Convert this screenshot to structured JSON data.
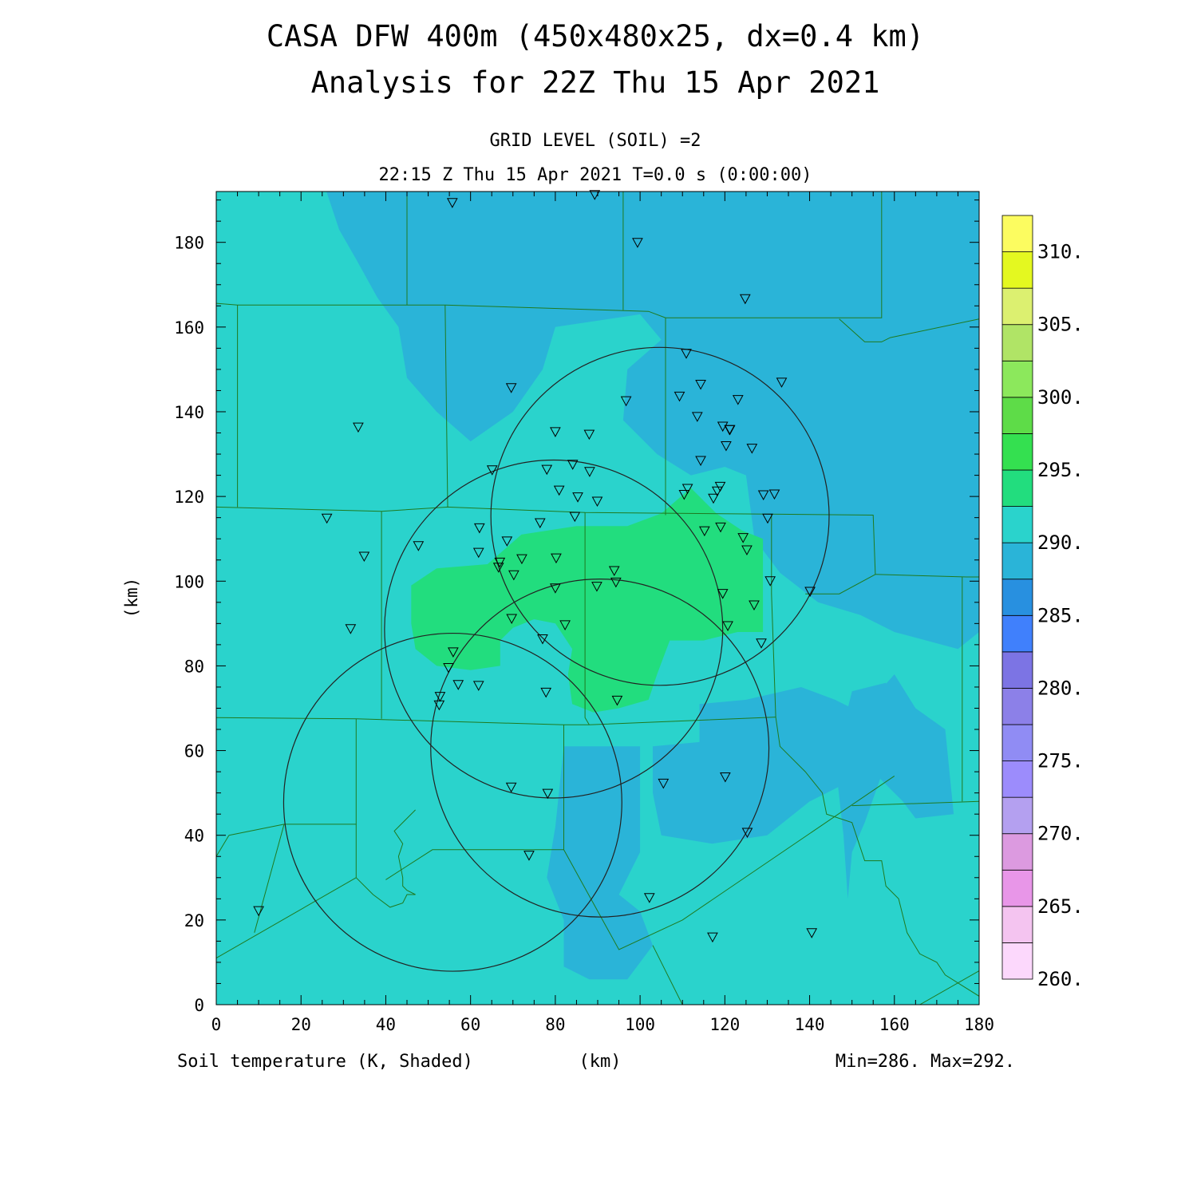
{
  "header": {
    "title_line1": "CASA DFW 400m (450x480x25, dx=0.4 km)",
    "title_line2": "Analysis for 22Z Thu 15 Apr 2021",
    "level_label": "GRID LEVEL (SOIL) =2",
    "time_label": "22:15 Z Thu 15 Apr 2021   T=0.0 s (0:00:00)"
  },
  "footer": {
    "field_label": "Soil temperature (K, Shaded)",
    "xunit": "(km)",
    "minmax": "Min=286. Max=292."
  },
  "chart_data": {
    "type": "heatmap",
    "title": "CASA DFW 400m (450x480x25, dx=0.4 km)",
    "subtitle": "Analysis for 22Z Thu 15 Apr 2021",
    "xlabel": "(km)",
    "ylabel": "(km)",
    "xlim": [
      0,
      180
    ],
    "ylim": [
      0,
      192
    ],
    "x_ticks": [
      "0",
      "20",
      "40",
      "60",
      "80",
      "100",
      "120",
      "140",
      "160",
      "180"
    ],
    "y_ticks": [
      "0",
      "20",
      "40",
      "60",
      "80",
      "100",
      "120",
      "140",
      "160",
      "180"
    ],
    "field": "Soil temperature (K)",
    "min": 286,
    "max": 292,
    "colorbar": {
      "labels": [
        "260.",
        "265.",
        "270.",
        "275.",
        "280.",
        "285.",
        "290.",
        "295.",
        "300.",
        "305.",
        "310."
      ],
      "bins": [
        {
          "from": 260.0,
          "to": 262.5,
          "color": "#fcd8fc"
        },
        {
          "from": 262.5,
          "to": 265.0,
          "color": "#f4c4f0"
        },
        {
          "from": 265.0,
          "to": 267.5,
          "color": "#e896e8"
        },
        {
          "from": 267.5,
          "to": 270.0,
          "color": "#dc9ae0"
        },
        {
          "from": 270.0,
          "to": 272.5,
          "color": "#b4a0f0"
        },
        {
          "from": 272.5,
          "to": 275.0,
          "color": "#9c8cfc"
        },
        {
          "from": 275.0,
          "to": 277.5,
          "color": "#908cf4"
        },
        {
          "from": 277.5,
          "to": 280.0,
          "color": "#8c80e8"
        },
        {
          "from": 280.0,
          "to": 282.5,
          "color": "#7c74e4"
        },
        {
          "from": 282.5,
          "to": 285.0,
          "color": "#4080fc"
        },
        {
          "from": 285.0,
          "to": 287.5,
          "color": "#2890e0"
        },
        {
          "from": 287.5,
          "to": 290.0,
          "color": "#2ab4d8"
        },
        {
          "from": 290.0,
          "to": 292.5,
          "color": "#2ad3cc"
        },
        {
          "from": 292.5,
          "to": 295.0,
          "color": "#22dd7e"
        },
        {
          "from": 295.0,
          "to": 297.5,
          "color": "#34e050"
        },
        {
          "from": 297.5,
          "to": 300.0,
          "color": "#5edc48"
        },
        {
          "from": 300.0,
          "to": 302.5,
          "color": "#8ce85c"
        },
        {
          "from": 302.5,
          "to": 305.0,
          "color": "#b0e466"
        },
        {
          "from": 305.0,
          "to": 307.5,
          "color": "#dcf070"
        },
        {
          "from": 307.5,
          "to": 310.0,
          "color": "#e4f820"
        },
        {
          "from": 310.0,
          "to": 312.5,
          "color": "#fcfc60"
        }
      ]
    },
    "regions": [
      {
        "level": "cool",
        "color": "#2ab4d8",
        "points": [
          [
            26,
            192
          ],
          [
            29,
            183
          ],
          [
            33,
            176
          ],
          [
            38,
            167
          ],
          [
            43,
            160
          ],
          [
            45,
            148
          ],
          [
            52,
            140
          ],
          [
            60,
            133
          ],
          [
            70,
            140
          ],
          [
            77,
            150
          ],
          [
            80,
            160
          ],
          [
            100,
            163
          ],
          [
            105,
            157
          ],
          [
            97,
            150
          ],
          [
            96,
            138
          ],
          [
            104,
            130
          ],
          [
            112,
            125
          ],
          [
            120,
            127
          ],
          [
            125,
            125
          ],
          [
            127,
            110
          ],
          [
            133,
            102
          ],
          [
            142,
            95
          ],
          [
            152,
            92
          ],
          [
            160,
            88
          ],
          [
            175,
            84
          ],
          [
            180,
            88
          ],
          [
            180,
            192
          ]
        ]
      },
      {
        "level": "cool",
        "color": "#2ab4d8",
        "points": [
          [
            82,
            61
          ],
          [
            100,
            61
          ],
          [
            100,
            36
          ],
          [
            95,
            26
          ],
          [
            100,
            22
          ],
          [
            103,
            14
          ],
          [
            97,
            6
          ],
          [
            88,
            6
          ],
          [
            82,
            9
          ],
          [
            82,
            20
          ],
          [
            78,
            30
          ],
          [
            80,
            42
          ]
        ]
      },
      {
        "level": "cool",
        "color": "#2ab4d8",
        "points": [
          [
            103,
            61
          ],
          [
            114,
            62
          ],
          [
            114,
            71
          ],
          [
            125,
            72
          ],
          [
            138,
            75
          ],
          [
            146,
            72
          ],
          [
            152,
            69
          ],
          [
            160,
            78
          ],
          [
            165,
            70
          ],
          [
            172,
            65
          ],
          [
            174,
            45
          ],
          [
            165,
            44
          ],
          [
            162,
            48
          ],
          [
            155,
            55
          ],
          [
            148,
            52
          ],
          [
            140,
            48
          ],
          [
            130,
            40
          ],
          [
            117,
            38
          ],
          [
            105,
            40
          ],
          [
            103,
            50
          ]
        ]
      },
      {
        "level": "cool",
        "color": "#2ab4d8",
        "points": [
          [
            150,
            74
          ],
          [
            158,
            76
          ],
          [
            159,
            60
          ],
          [
            153,
            43
          ],
          [
            150,
            36
          ],
          [
            149,
            25
          ],
          [
            148,
            40
          ],
          [
            146,
            58
          ]
        ]
      },
      {
        "level": "warm",
        "color": "#22dd7e",
        "points": [
          [
            46,
            99
          ],
          [
            52,
            103
          ],
          [
            64,
            104
          ],
          [
            72,
            111
          ],
          [
            85,
            113
          ],
          [
            97,
            113
          ],
          [
            105,
            116
          ],
          [
            112,
            122
          ],
          [
            118,
            116
          ],
          [
            124,
            112
          ],
          [
            129,
            110
          ],
          [
            129,
            88
          ],
          [
            123,
            88
          ],
          [
            115,
            86
          ],
          [
            107,
            86
          ],
          [
            104,
            78
          ],
          [
            102,
            72
          ],
          [
            95,
            70
          ],
          [
            89,
            69
          ],
          [
            84,
            71
          ],
          [
            83,
            78
          ],
          [
            84,
            84
          ],
          [
            80,
            90
          ],
          [
            75,
            91
          ],
          [
            70,
            89
          ],
          [
            67,
            86
          ],
          [
            67,
            80
          ],
          [
            60,
            79
          ],
          [
            52,
            80
          ],
          [
            47,
            84
          ],
          [
            46,
            90
          ]
        ]
      }
    ],
    "sites": [
      [
        55.7,
        189.4
      ],
      [
        89.3,
        191.3
      ],
      [
        99.4,
        180.0
      ],
      [
        124.8,
        166.7
      ],
      [
        110.9,
        153.8
      ],
      [
        109.3,
        143.7
      ],
      [
        114.3,
        146.5
      ],
      [
        133.4,
        147.0
      ],
      [
        96.7,
        142.6
      ],
      [
        69.6,
        145.7
      ],
      [
        123.1,
        142.9
      ],
      [
        113.5,
        138.9
      ],
      [
        119.5,
        136.6
      ],
      [
        121.1,
        135.8
      ],
      [
        121.2,
        135.8
      ],
      [
        120.3,
        132.0
      ],
      [
        126.4,
        131.4
      ],
      [
        33.5,
        136.4
      ],
      [
        80.0,
        135.3
      ],
      [
        88.0,
        134.7
      ],
      [
        114.3,
        128.5
      ],
      [
        65.1,
        126.3
      ],
      [
        78.0,
        126.4
      ],
      [
        84.1,
        127.6
      ],
      [
        88.1,
        125.9
      ],
      [
        80.9,
        121.5
      ],
      [
        111.2,
        121.9
      ],
      [
        110.4,
        120.5
      ],
      [
        118.9,
        122.4
      ],
      [
        118.2,
        121.3
      ],
      [
        117.3,
        119.6
      ],
      [
        85.3,
        119.9
      ],
      [
        89.9,
        118.9
      ],
      [
        129.1,
        120.4
      ],
      [
        131.7,
        120.6
      ],
      [
        130.1,
        114.9
      ],
      [
        84.6,
        115.3
      ],
      [
        26.1,
        114.9
      ],
      [
        62.1,
        112.6
      ],
      [
        76.4,
        113.8
      ],
      [
        115.2,
        111.9
      ],
      [
        119.0,
        112.8
      ],
      [
        124.3,
        110.3
      ],
      [
        125.2,
        107.4
      ],
      [
        68.6,
        109.5
      ],
      [
        47.7,
        108.4
      ],
      [
        34.9,
        105.9
      ],
      [
        61.9,
        106.8
      ],
      [
        66.9,
        104.5
      ],
      [
        66.6,
        103.3
      ],
      [
        72.1,
        105.3
      ],
      [
        80.2,
        105.5
      ],
      [
        70.2,
        101.5
      ],
      [
        93.9,
        102.5
      ],
      [
        94.3,
        99.8
      ],
      [
        89.8,
        98.8
      ],
      [
        80.0,
        98.4
      ],
      [
        130.7,
        100.1
      ],
      [
        119.5,
        97.1
      ],
      [
        126.9,
        94.4
      ],
      [
        140.1,
        97.6
      ],
      [
        69.7,
        91.2
      ],
      [
        82.3,
        89.7
      ],
      [
        120.7,
        89.5
      ],
      [
        31.7,
        88.8
      ],
      [
        77.0,
        86.4
      ],
      [
        128.6,
        85.4
      ],
      [
        55.9,
        83.3
      ],
      [
        54.8,
        79.6
      ],
      [
        57.1,
        75.6
      ],
      [
        61.9,
        75.4
      ],
      [
        77.8,
        73.8
      ],
      [
        52.8,
        72.8
      ],
      [
        52.6,
        70.8
      ],
      [
        94.6,
        71.9
      ],
      [
        69.6,
        51.4
      ],
      [
        78.2,
        49.9
      ],
      [
        120.1,
        53.8
      ],
      [
        105.5,
        52.3
      ],
      [
        125.3,
        40.7
      ],
      [
        73.8,
        35.3
      ],
      [
        102.2,
        25.3
      ],
      [
        10.0,
        22.2
      ],
      [
        117.1,
        16.0
      ],
      [
        140.5,
        17.0
      ]
    ],
    "radar_rings": [
      {
        "center": [
          104.7,
          115.3
        ],
        "radius": 39.9
      },
      {
        "center": [
          79.6,
          88.7
        ],
        "radius": 39.9
      },
      {
        "center": [
          90.5,
          60.6
        ],
        "radius": 39.9
      },
      {
        "center": [
          55.8,
          47.8
        ],
        "radius": 39.9
      }
    ],
    "county_lines": [
      [
        [
          26.5,
          192
        ],
        [
          26.5,
          192
        ]
      ],
      [
        [
          0,
          165.6
        ],
        [
          5,
          165.2
        ],
        [
          54,
          165.2
        ],
        [
          102,
          163.7
        ],
        [
          106,
          162.2
        ],
        [
          147,
          162.2
        ],
        [
          157,
          162.2
        ],
        [
          157,
          192
        ]
      ],
      [
        [
          45,
          192
        ],
        [
          45,
          165.2
        ]
      ],
      [
        [
          96,
          192
        ],
        [
          96,
          164
        ]
      ],
      [
        [
          147,
          161.9
        ],
        [
          153,
          156.5
        ],
        [
          157,
          156.5
        ],
        [
          159,
          157.5
        ],
        [
          180,
          161.9
        ]
      ],
      [
        [
          5,
          165.2
        ],
        [
          5,
          117.5
        ]
      ],
      [
        [
          54,
          165.2
        ],
        [
          54.6,
          117.5
        ]
      ],
      [
        [
          106,
          162.2
        ],
        [
          106,
          115.6
        ]
      ],
      [
        [
          0,
          117.5
        ],
        [
          39,
          116.5
        ],
        [
          54.6,
          117.5
        ],
        [
          87,
          116.2
        ],
        [
          133,
          115.8
        ],
        [
          155,
          115.6
        ],
        [
          155.5,
          101.6
        ],
        [
          147,
          97.0
        ],
        [
          139,
          97.0
        ]
      ],
      [
        [
          155.5,
          101.6
        ],
        [
          177,
          101.0
        ],
        [
          180,
          101.0
        ]
      ],
      [
        [
          39,
          116.5
        ],
        [
          39,
          67.5
        ]
      ],
      [
        [
          87,
          116.2
        ],
        [
          87,
          67.8
        ],
        [
          88,
          66.1
        ]
      ],
      [
        [
          131,
          115.8
        ],
        [
          131,
          97
        ],
        [
          132,
          67.9
        ],
        [
          133,
          61
        ],
        [
          139,
          55
        ],
        [
          143,
          50
        ],
        [
          144,
          45
        ],
        [
          150,
          43
        ],
        [
          153,
          34
        ],
        [
          157,
          34
        ],
        [
          158,
          28
        ],
        [
          161,
          25
        ],
        [
          163,
          17
        ],
        [
          166,
          12
        ],
        [
          170,
          10
        ],
        [
          172,
          7
        ],
        [
          180,
          2
        ]
      ],
      [
        [
          0,
          67.8
        ],
        [
          33,
          67.5
        ],
        [
          82,
          66.1
        ],
        [
          88,
          66.1
        ],
        [
          132,
          67.9
        ]
      ],
      [
        [
          33,
          67.5
        ],
        [
          33,
          42.6
        ],
        [
          16,
          42.6
        ],
        [
          3,
          40
        ]
      ],
      [
        [
          33,
          42.6
        ],
        [
          33,
          30
        ],
        [
          37,
          26
        ],
        [
          41,
          23
        ],
        [
          44,
          24
        ],
        [
          45,
          26
        ],
        [
          47,
          26
        ],
        [
          45,
          27
        ],
        [
          44,
          28
        ],
        [
          44,
          30
        ],
        [
          43,
          35
        ],
        [
          44,
          38
        ],
        [
          42,
          41
        ],
        [
          45,
          44
        ],
        [
          47,
          46
        ]
      ],
      [
        [
          82,
          66.1
        ],
        [
          82,
          36.6
        ],
        [
          59,
          36.6
        ],
        [
          51,
          36.6
        ],
        [
          40,
          29.5
        ]
      ],
      [
        [
          3,
          40
        ],
        [
          0,
          35
        ]
      ],
      [
        [
          0,
          11
        ],
        [
          33,
          30
        ]
      ],
      [
        [
          9,
          17
        ],
        [
          16,
          42.6
        ]
      ],
      [
        [
          82,
          36.6
        ],
        [
          95,
          13
        ],
        [
          110,
          20
        ],
        [
          160,
          54
        ]
      ],
      [
        [
          103,
          14
        ],
        [
          110,
          0
        ]
      ],
      [
        [
          150,
          47
        ],
        [
          180,
          48
        ]
      ],
      [
        [
          176,
          101
        ],
        [
          176,
          48
        ]
      ],
      [
        [
          180,
          8
        ],
        [
          166,
          0
        ]
      ]
    ]
  }
}
